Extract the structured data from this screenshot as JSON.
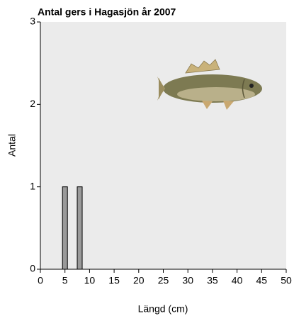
{
  "chart_data": {
    "type": "bar",
    "title": "Antal gers i Hagasjön år 2007",
    "x_label": "Längd (cm)",
    "y_label": "Antal",
    "x": [
      5,
      8
    ],
    "values": [
      1,
      1
    ],
    "color": "#9a9a9a",
    "xlim": [
      0,
      50
    ],
    "xticks": [
      0,
      5,
      10,
      15,
      20,
      25,
      30,
      35,
      40,
      45,
      50
    ],
    "ylim": [
      0,
      3
    ],
    "yticks": [
      0,
      1,
      2,
      3
    ]
  }
}
